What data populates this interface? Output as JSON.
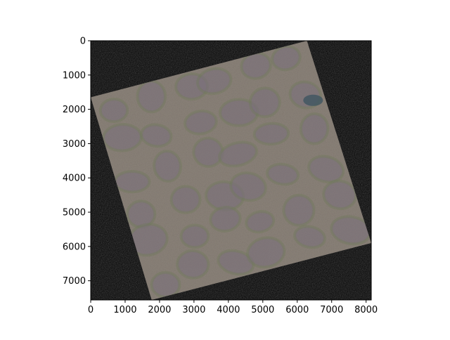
{
  "figure": {
    "background": "#ffffff"
  },
  "chart_data": {
    "type": "image",
    "title": "",
    "xlabel": "",
    "ylabel": "",
    "xlim": [
      0,
      8150
    ],
    "ylim": [
      7560,
      0
    ],
    "x_ticks": [
      {
        "value": 0,
        "label": "0"
      },
      {
        "value": 1000,
        "label": "1000"
      },
      {
        "value": 2000,
        "label": "2000"
      },
      {
        "value": 3000,
        "label": "3000"
      },
      {
        "value": 4000,
        "label": "4000"
      },
      {
        "value": 5000,
        "label": "5000"
      },
      {
        "value": 6000,
        "label": "6000"
      },
      {
        "value": 7000,
        "label": "7000"
      },
      {
        "value": 8000,
        "label": "8000"
      }
    ],
    "y_ticks": [
      {
        "value": 0,
        "label": "0"
      },
      {
        "value": 1000,
        "label": "1000"
      },
      {
        "value": 2000,
        "label": "2000"
      },
      {
        "value": 3000,
        "label": "3000"
      },
      {
        "value": 4000,
        "label": "4000"
      },
      {
        "value": 5000,
        "label": "5000"
      },
      {
        "value": 6000,
        "label": "6000"
      },
      {
        "value": 7000,
        "label": "7000"
      }
    ],
    "image_background_color": "#000000",
    "rotated_raster": {
      "corners": [
        [
          6280,
          0
        ],
        [
          8150,
          5900
        ],
        [
          1770,
          7560
        ],
        [
          0,
          1650
        ]
      ],
      "base_color": "#8b8279",
      "dark_patch_color": "#7a6f7c",
      "trough_color": "#6c7a55",
      "water_color": "#3e5560"
    },
    "grid": false,
    "legend": "none"
  }
}
